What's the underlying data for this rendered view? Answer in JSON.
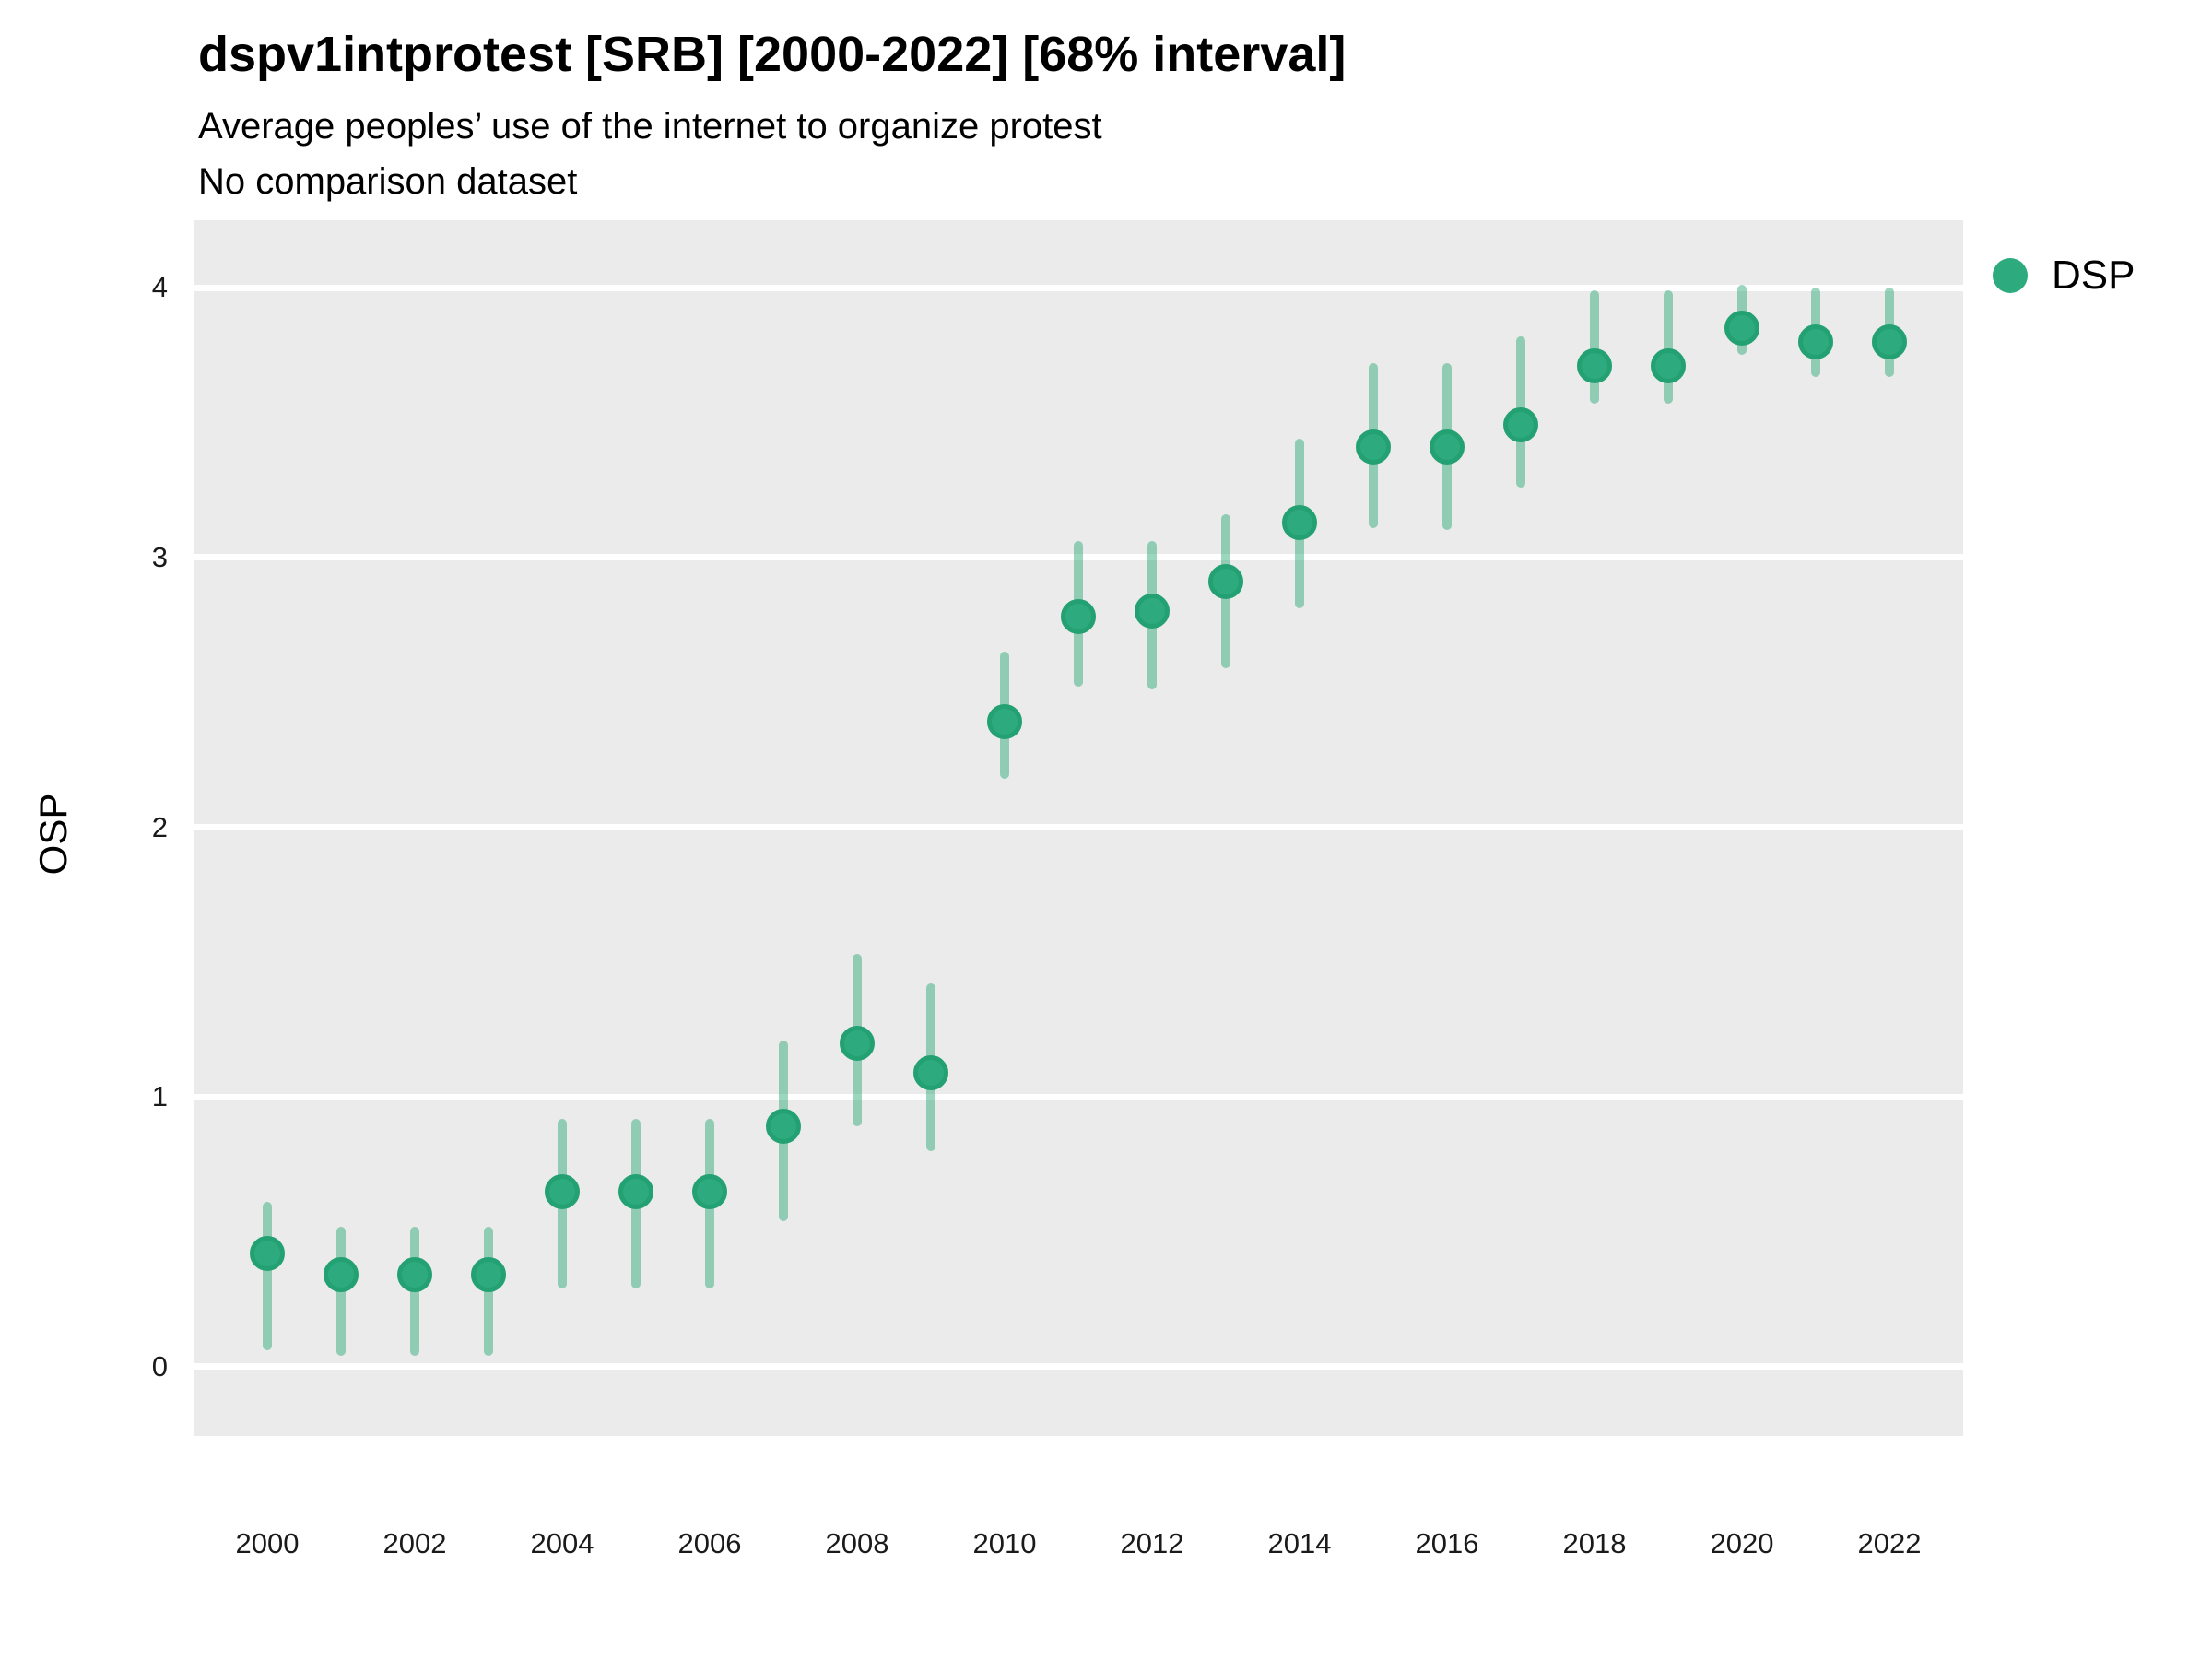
{
  "title": "dspv1intprotest [SRB] [2000-2022] [68% interval]",
  "subtitle": "Average peoples’ use of the internet to organize protest",
  "note": "No comparison dataset",
  "ylabel": "OSP",
  "legend": {
    "label": "DSP"
  },
  "colors": {
    "point": "#2dab7e",
    "point_border": "#24a173",
    "interval": "rgba(42,168,118,0.47)",
    "panel_bg": "#ebebeb",
    "grid": "#ffffff",
    "text": "#000000"
  },
  "chart_data": {
    "type": "scatter",
    "variant": "pointrange",
    "title": "dspv1intprotest [SRB] [2000-2022] [68% interval]",
    "subtitle": "Average peoples’ use of the internet to organize protest",
    "note": "No comparison dataset",
    "xlabel": "",
    "ylabel": "OSP",
    "legend_entries": [
      "DSP"
    ],
    "legend_position": "top-right-outside",
    "grid": "horizontal-major-only",
    "x_domain": [
      1999,
      2023
    ],
    "y_domain": [
      -0.2562,
      4.2494
    ],
    "x_ticks": [
      2000,
      2002,
      2004,
      2006,
      2008,
      2010,
      2012,
      2014,
      2016,
      2018,
      2020,
      2022
    ],
    "y_ticks": [
      0,
      1,
      2,
      3,
      4
    ],
    "interval_label": "68% interval",
    "series": [
      {
        "name": "DSP",
        "points": [
          {
            "x": 2000,
            "y": 0.42,
            "lo": 0.06,
            "hi": 0.61
          },
          {
            "x": 2001,
            "y": 0.34,
            "lo": 0.04,
            "hi": 0.52
          },
          {
            "x": 2002,
            "y": 0.34,
            "lo": 0.04,
            "hi": 0.52
          },
          {
            "x": 2003,
            "y": 0.34,
            "lo": 0.04,
            "hi": 0.52
          },
          {
            "x": 2004,
            "y": 0.65,
            "lo": 0.29,
            "hi": 0.92
          },
          {
            "x": 2005,
            "y": 0.65,
            "lo": 0.29,
            "hi": 0.92
          },
          {
            "x": 2006,
            "y": 0.65,
            "lo": 0.29,
            "hi": 0.92
          },
          {
            "x": 2007,
            "y": 0.89,
            "lo": 0.54,
            "hi": 1.21
          },
          {
            "x": 2008,
            "y": 1.2,
            "lo": 0.89,
            "hi": 1.53
          },
          {
            "x": 2009,
            "y": 1.09,
            "lo": 0.8,
            "hi": 1.42
          },
          {
            "x": 2010,
            "y": 2.39,
            "lo": 2.18,
            "hi": 2.65
          },
          {
            "x": 2011,
            "y": 2.78,
            "lo": 2.52,
            "hi": 3.06
          },
          {
            "x": 2012,
            "y": 2.8,
            "lo": 2.51,
            "hi": 3.06
          },
          {
            "x": 2013,
            "y": 2.91,
            "lo": 2.59,
            "hi": 3.16
          },
          {
            "x": 2014,
            "y": 3.13,
            "lo": 2.81,
            "hi": 3.44
          },
          {
            "x": 2015,
            "y": 3.41,
            "lo": 3.11,
            "hi": 3.72
          },
          {
            "x": 2016,
            "y": 3.41,
            "lo": 3.1,
            "hi": 3.72
          },
          {
            "x": 2017,
            "y": 3.49,
            "lo": 3.26,
            "hi": 3.82
          },
          {
            "x": 2018,
            "y": 3.71,
            "lo": 3.57,
            "hi": 3.99
          },
          {
            "x": 2019,
            "y": 3.71,
            "lo": 3.57,
            "hi": 3.99
          },
          {
            "x": 2020,
            "y": 3.85,
            "lo": 3.75,
            "hi": 4.01
          },
          {
            "x": 2021,
            "y": 3.8,
            "lo": 3.67,
            "hi": 4.0
          },
          {
            "x": 2022,
            "y": 3.8,
            "lo": 3.67,
            "hi": 4.0
          }
        ]
      }
    ]
  }
}
